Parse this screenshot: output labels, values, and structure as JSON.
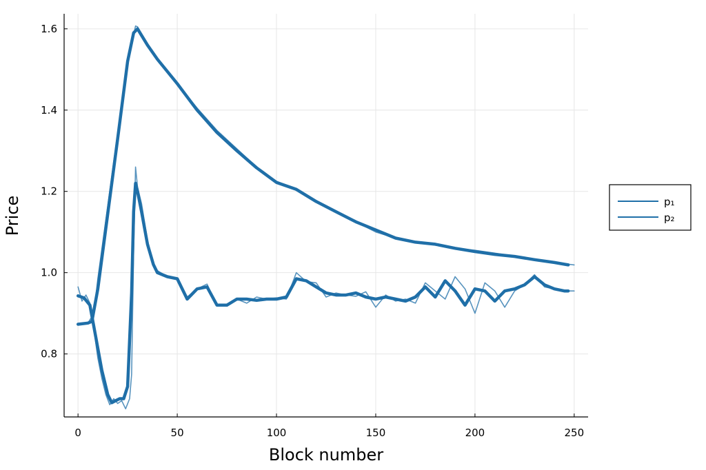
{
  "chart_data": {
    "type": "line",
    "title": "",
    "xlabel": "Block number",
    "ylabel": "Price",
    "xlim": [
      -7,
      257
    ],
    "ylim": [
      0.645,
      1.637
    ],
    "xticks": [
      0,
      50,
      100,
      150,
      200,
      250
    ],
    "yticks": [
      0.8,
      1.0,
      1.2,
      1.4,
      1.6
    ],
    "xtick_labels": [
      "0",
      "50",
      "100",
      "150",
      "200",
      "250"
    ],
    "ytick_labels": [
      "0.8",
      "1.0",
      "1.2",
      "1.4",
      "1.6"
    ],
    "grid": true,
    "legend_position": "outer right",
    "color": "#1f6fa8",
    "series": [
      {
        "name": "p₁",
        "style": "raw",
        "x": [
          0,
          5,
          8,
          10,
          15,
          20,
          25,
          28,
          29,
          30,
          35,
          40,
          50,
          60,
          70,
          80,
          90,
          100,
          110,
          120,
          130,
          140,
          150,
          160,
          170,
          180,
          190,
          200,
          210,
          220,
          230,
          240,
          250
        ],
        "y": [
          0.873,
          0.876,
          0.9,
          0.985,
          1.165,
          1.345,
          1.525,
          1.585,
          1.607,
          1.605,
          1.56,
          1.525,
          1.465,
          1.405,
          1.35,
          1.305,
          1.26,
          1.225,
          1.205,
          1.175,
          1.15,
          1.125,
          1.1,
          1.085,
          1.073,
          1.068,
          1.06,
          1.055,
          1.048,
          1.04,
          1.032,
          1.025,
          1.019
        ]
      },
      {
        "name": "p₂",
        "style": "raw",
        "x": [
          0,
          2,
          4,
          6,
          8,
          10,
          12,
          14,
          16,
          18,
          20,
          22,
          24,
          26,
          27,
          28,
          29,
          30,
          32,
          35,
          38,
          40,
          45,
          50,
          55,
          60,
          65,
          70,
          75,
          80,
          85,
          90,
          95,
          100,
          105,
          110,
          115,
          120,
          125,
          130,
          135,
          140,
          145,
          150,
          155,
          160,
          165,
          170,
          175,
          180,
          185,
          190,
          195,
          200,
          205,
          210,
          215,
          220,
          225,
          230,
          235,
          240,
          245,
          250
        ],
        "y": [
          0.965,
          0.93,
          0.945,
          0.925,
          0.86,
          0.79,
          0.74,
          0.7,
          0.675,
          0.69,
          0.678,
          0.685,
          0.665,
          0.69,
          0.75,
          1.05,
          1.26,
          1.21,
          1.17,
          1.08,
          1.02,
          1.005,
          0.99,
          0.985,
          0.94,
          0.96,
          0.972,
          0.918,
          0.92,
          0.935,
          0.925,
          0.94,
          0.935,
          0.938,
          0.935,
          1.0,
          0.978,
          0.975,
          0.94,
          0.95,
          0.945,
          0.942,
          0.953,
          0.915,
          0.945,
          0.93,
          0.935,
          0.925,
          0.975,
          0.955,
          0.935,
          0.99,
          0.96,
          0.9,
          0.975,
          0.955,
          0.915,
          0.955,
          0.97,
          0.995,
          0.965,
          0.96,
          0.955,
          0.955
        ]
      },
      {
        "name": "",
        "style": "smoothed",
        "x": [
          0,
          5,
          7,
          10,
          15,
          20,
          25,
          28,
          30,
          35,
          40,
          50,
          60,
          70,
          80,
          90,
          100,
          110,
          120,
          130,
          140,
          150,
          160,
          170,
          180,
          190,
          200,
          210,
          220,
          230,
          240,
          247
        ],
        "y": [
          0.873,
          0.876,
          0.88,
          0.96,
          1.145,
          1.33,
          1.52,
          1.59,
          1.6,
          1.56,
          1.525,
          1.465,
          1.4,
          1.345,
          1.3,
          1.258,
          1.222,
          1.205,
          1.175,
          1.15,
          1.125,
          1.105,
          1.085,
          1.075,
          1.07,
          1.06,
          1.052,
          1.045,
          1.04,
          1.032,
          1.025,
          1.019
        ]
      },
      {
        "name": "",
        "style": "smoothed",
        "x": [
          0,
          3,
          6,
          9,
          12,
          15,
          17,
          19,
          21,
          23,
          25,
          27,
          28,
          29,
          30,
          32,
          35,
          38,
          40,
          45,
          50,
          55,
          60,
          65,
          70,
          75,
          80,
          85,
          90,
          95,
          100,
          105,
          110,
          115,
          120,
          125,
          130,
          135,
          140,
          145,
          150,
          155,
          160,
          165,
          170,
          175,
          180,
          185,
          190,
          195,
          200,
          205,
          210,
          215,
          220,
          225,
          230,
          235,
          240,
          245,
          247
        ],
        "y": [
          0.943,
          0.938,
          0.92,
          0.84,
          0.76,
          0.7,
          0.68,
          0.685,
          0.69,
          0.69,
          0.72,
          0.95,
          1.15,
          1.22,
          1.2,
          1.15,
          1.07,
          1.02,
          1.0,
          0.99,
          0.985,
          0.935,
          0.96,
          0.965,
          0.92,
          0.92,
          0.935,
          0.935,
          0.932,
          0.935,
          0.935,
          0.94,
          0.985,
          0.98,
          0.965,
          0.95,
          0.945,
          0.945,
          0.95,
          0.94,
          0.935,
          0.94,
          0.935,
          0.93,
          0.94,
          0.965,
          0.94,
          0.98,
          0.955,
          0.92,
          0.96,
          0.955,
          0.93,
          0.955,
          0.96,
          0.97,
          0.99,
          0.97,
          0.96,
          0.955,
          0.955
        ]
      }
    ]
  }
}
